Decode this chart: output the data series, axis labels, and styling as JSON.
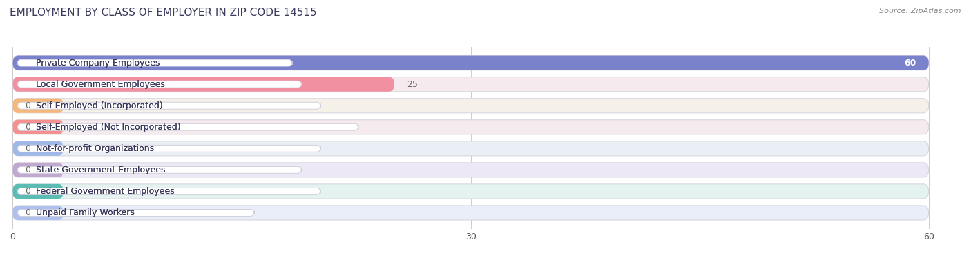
{
  "title": "EMPLOYMENT BY CLASS OF EMPLOYER IN ZIP CODE 14515",
  "source": "Source: ZipAtlas.com",
  "categories": [
    "Private Company Employees",
    "Local Government Employees",
    "Self-Employed (Incorporated)",
    "Self-Employed (Not Incorporated)",
    "Not-for-profit Organizations",
    "State Government Employees",
    "Federal Government Employees",
    "Unpaid Family Workers"
  ],
  "values": [
    60,
    25,
    0,
    0,
    0,
    0,
    0,
    0
  ],
  "bar_colors": [
    "#7b82cc",
    "#f090a0",
    "#f5b87a",
    "#f59090",
    "#a0b8e8",
    "#c0a8d0",
    "#5bbcb4",
    "#b0c0ee"
  ],
  "bar_bg_colors": [
    "#ebebf5",
    "#f5eaee",
    "#f5f0e8",
    "#f5eaee",
    "#eaeff5",
    "#ede8f5",
    "#e4f2f0",
    "#eaeef8"
  ],
  "xlim_max": 60,
  "xticks": [
    0,
    30,
    60
  ],
  "value_label_color_inside": "#ffffff",
  "value_label_color_outside": "#666666",
  "title_fontsize": 11,
  "title_color": "#3a3a5c",
  "bar_height": 0.68,
  "label_fontsize": 9,
  "source_fontsize": 8,
  "background_color": "#f0f0f5",
  "bar_row_bg": "#f5f5f8"
}
